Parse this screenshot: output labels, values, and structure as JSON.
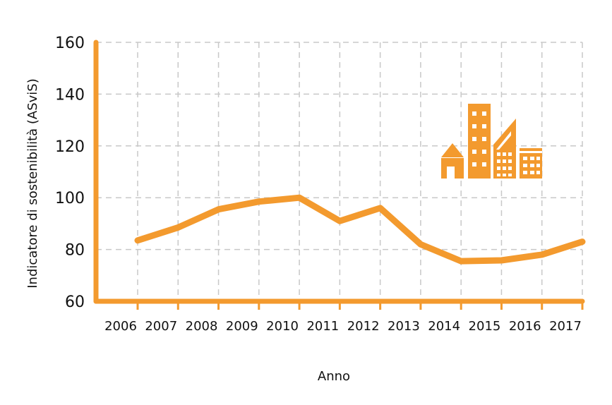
{
  "chart_data": {
    "type": "line",
    "xlabel": "Anno",
    "ylabel": "Indicatore di sostenibilità (ASviS)",
    "categories": [
      "2006",
      "2007",
      "2008",
      "2009",
      "2010",
      "2011",
      "2012",
      "2013",
      "2014",
      "2015",
      "2016",
      "2017"
    ],
    "series": [
      {
        "values": [
          83.5,
          88.5,
          95.5,
          98.5,
          100,
          91,
          96,
          82,
          75.5,
          75.8,
          78,
          83
        ]
      }
    ],
    "ylim": [
      60,
      160
    ],
    "yticks": [
      60,
      80,
      100,
      120,
      140,
      160
    ],
    "grid": true,
    "colors": {
      "line": "#f39a2e",
      "axis": "#f39a2e",
      "grid": "#c8c8c8",
      "icon": "#f39a2e"
    },
    "annotations": [
      {
        "icon": "city-buildings-icon"
      }
    ]
  }
}
